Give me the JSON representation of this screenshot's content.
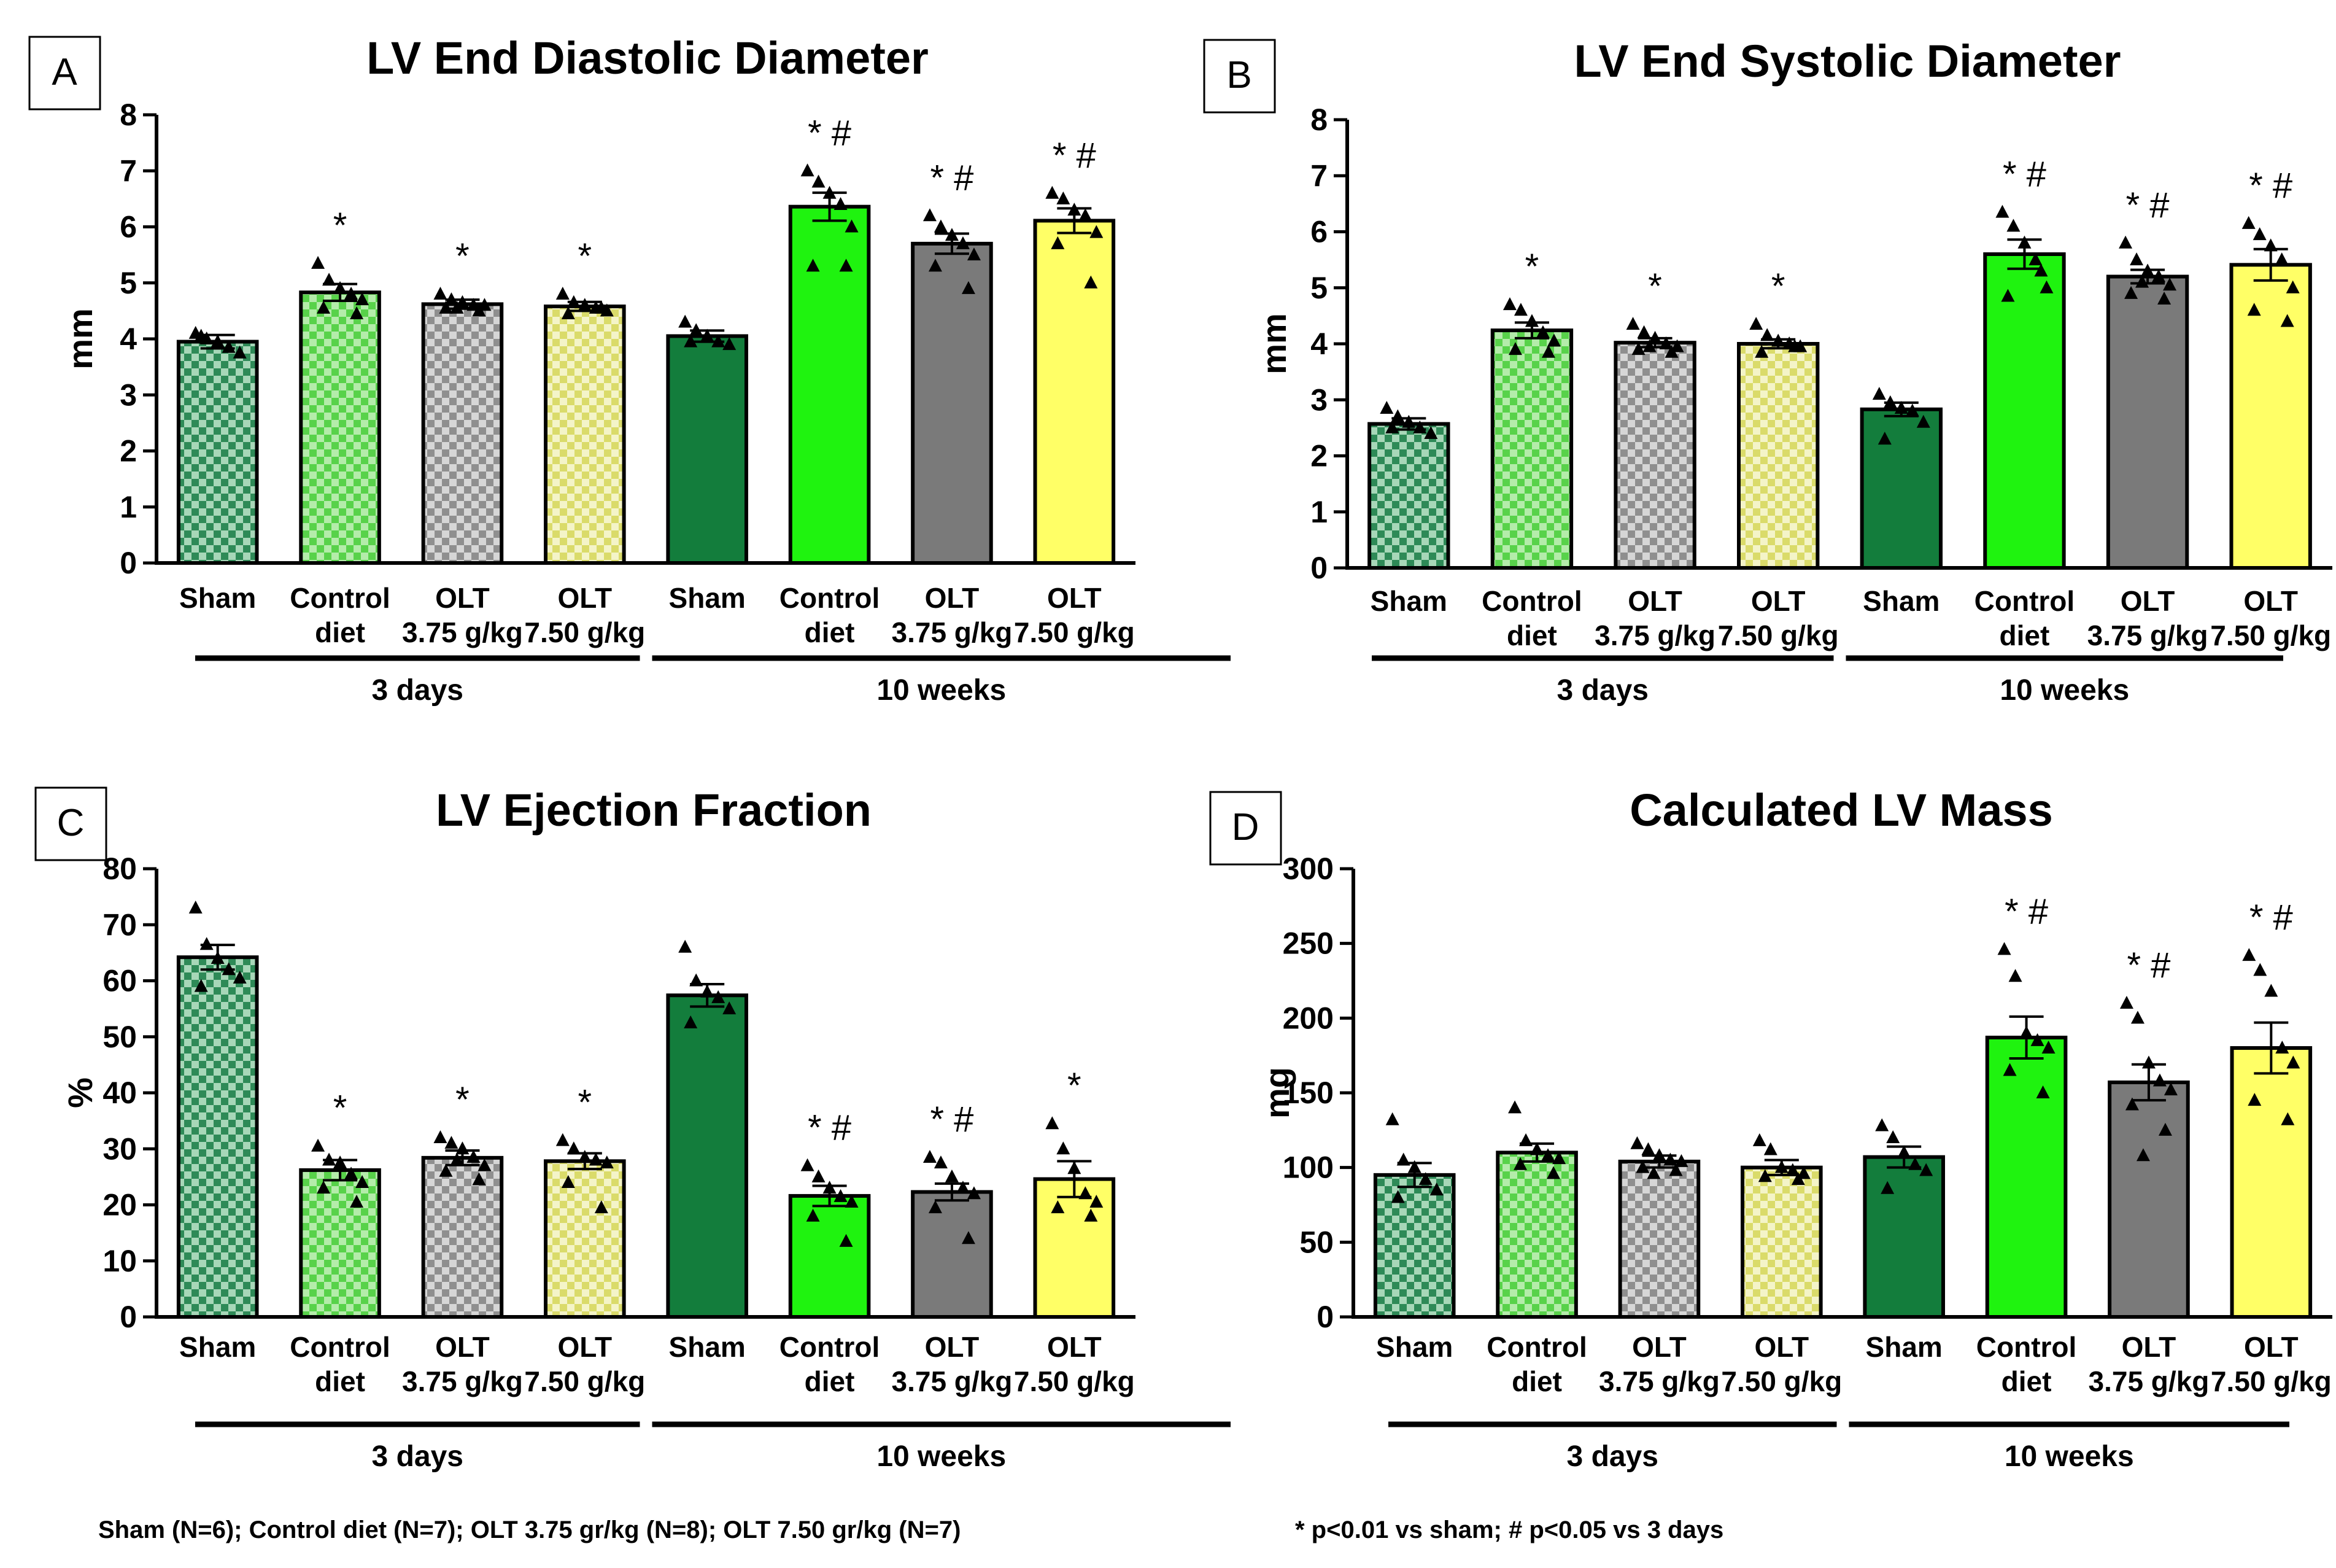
{
  "footnotes": {
    "sample_sizes": "Sham (N=6); Control diet (N=7); OLT 3.75 gr/kg (N=8); OLT 7.50 gr/kg (N=7)",
    "significance": "* p<0.01 vs sham; # p<0.05 vs 3 days"
  },
  "groups": [
    "3 days",
    "10 weeks"
  ],
  "category_lines": [
    [
      "Sham",
      ""
    ],
    [
      "Control",
      "diet"
    ],
    [
      "OLT",
      "3.75 g/kg"
    ],
    [
      "OLT",
      "7.50 g/kg"
    ],
    [
      "Sham",
      ""
    ],
    [
      "Control",
      "diet"
    ],
    [
      "OLT",
      "3.75 g/kg"
    ],
    [
      "OLT",
      "7.50 g/kg"
    ]
  ],
  "colors": {
    "sham_3d": "#1e7a45",
    "control_3d": "#6dd85c",
    "olt375_3d": "#9a9a9a",
    "olt750_3d": "#e3e68a",
    "sham_10w": "#137d3c",
    "control_10w": "#1ff30f",
    "olt375_10w": "#7a7a7a",
    "olt750_10w": "#ffff66"
  },
  "chart_data": [
    {
      "type": "bar",
      "panel": "A",
      "title": "LV End Diastolic Diameter",
      "ylabel": "mm",
      "ylim": [
        0,
        8
      ],
      "yticks": [
        0,
        1,
        2,
        3,
        4,
        5,
        6,
        7,
        8
      ],
      "categories": [
        "Sham",
        "Control diet",
        "OLT 3.75 g/kg",
        "OLT 7.50 g/kg",
        "Sham",
        "Control diet",
        "OLT 3.75 g/kg",
        "OLT 7.50 g/kg"
      ],
      "values": [
        3.95,
        4.83,
        4.62,
        4.58,
        4.05,
        6.36,
        5.7,
        6.11
      ],
      "sem": [
        0.12,
        0.15,
        0.08,
        0.08,
        0.1,
        0.25,
        0.18,
        0.22
      ],
      "points": [
        [
          4.1,
          4.0,
          3.95,
          3.85,
          3.75,
          4.05
        ],
        [
          5.35,
          5.05,
          4.9,
          4.8,
          4.7,
          4.55,
          4.45
        ],
        [
          4.8,
          4.7,
          4.65,
          4.6,
          4.6,
          4.55,
          4.5,
          4.55
        ],
        [
          4.8,
          4.65,
          4.6,
          4.55,
          4.5,
          4.45,
          4.55
        ],
        [
          4.3,
          4.15,
          4.05,
          3.95,
          3.9,
          3.95
        ],
        [
          7.0,
          6.8,
          6.6,
          6.4,
          6.0,
          5.3,
          5.3
        ],
        [
          6.2,
          6.0,
          5.85,
          5.7,
          5.5,
          5.3,
          4.9
        ],
        [
          6.6,
          6.5,
          6.3,
          6.2,
          5.9,
          5.7,
          5.0
        ]
      ],
      "annotations": [
        "",
        "*",
        "*",
        "*",
        "",
        "* #",
        "* #",
        "* #"
      ]
    },
    {
      "type": "bar",
      "panel": "B",
      "title": "LV End Systolic Diameter",
      "ylabel": "mm",
      "ylim": [
        0,
        8
      ],
      "yticks": [
        0,
        1,
        2,
        3,
        4,
        5,
        6,
        7,
        8
      ],
      "categories": [
        "Sham",
        "Control diet",
        "OLT 3.75 g/kg",
        "OLT 7.50 g/kg",
        "Sham",
        "Control diet",
        "OLT 3.75 g/kg",
        "OLT 7.50 g/kg"
      ],
      "values": [
        2.57,
        4.24,
        4.02,
        4.0,
        2.83,
        5.6,
        5.2,
        5.41
      ],
      "sem": [
        0.1,
        0.14,
        0.08,
        0.08,
        0.12,
        0.26,
        0.12,
        0.28
      ],
      "points": [
        [
          2.85,
          2.7,
          2.6,
          2.5,
          2.4,
          2.5
        ],
        [
          4.7,
          4.6,
          4.4,
          4.2,
          4.05,
          3.9,
          3.85
        ],
        [
          4.35,
          4.2,
          4.1,
          4.0,
          3.95,
          3.9,
          3.85,
          3.95
        ],
        [
          4.35,
          4.15,
          4.05,
          4.0,
          3.95,
          3.85,
          3.95
        ],
        [
          3.1,
          2.95,
          2.85,
          2.8,
          2.6,
          2.3
        ],
        [
          6.35,
          6.1,
          5.8,
          5.5,
          5.0,
          4.85,
          5.3
        ],
        [
          5.8,
          5.5,
          5.3,
          5.2,
          5.05,
          4.9,
          4.8,
          5.1
        ],
        [
          6.15,
          5.95,
          5.75,
          5.5,
          5.0,
          4.6,
          4.4
        ]
      ],
      "annotations": [
        "",
        "*",
        "*",
        "*",
        "",
        "* #",
        "* #",
        "* #"
      ]
    },
    {
      "type": "bar",
      "panel": "C",
      "title": "LV Ejection Fraction",
      "ylabel": "%",
      "ylim": [
        0,
        80
      ],
      "yticks": [
        0,
        10,
        20,
        30,
        40,
        50,
        60,
        70,
        80
      ],
      "categories": [
        "Sham",
        "Control diet",
        "OLT 3.75 g/kg",
        "OLT 7.50 g/kg",
        "Sham",
        "Control diet",
        "OLT 3.75 g/kg",
        "OLT 7.50 g/kg"
      ],
      "values": [
        64.2,
        26.2,
        28.4,
        27.8,
        57.4,
        21.6,
        22.3,
        24.6
      ],
      "sem": [
        2.2,
        1.8,
        1.3,
        1.4,
        2.0,
        1.8,
        1.5,
        3.2
      ],
      "points": [
        [
          73.0,
          66.5,
          64.0,
          62.0,
          60.5,
          59.0
        ],
        [
          30.5,
          28.0,
          27.5,
          25.5,
          24.0,
          23.0,
          20.5
        ],
        [
          32.0,
          31.0,
          30.0,
          28.5,
          27.0,
          26.0,
          24.5,
          28.0
        ],
        [
          31.5,
          30.0,
          28.5,
          28.0,
          27.5,
          24.0,
          19.5
        ],
        [
          66.0,
          60.0,
          58.0,
          57.0,
          55.0,
          52.5
        ],
        [
          27.0,
          25.0,
          23.0,
          21.5,
          20.5,
          18.0,
          13.5
        ],
        [
          28.5,
          27.5,
          25.0,
          23.0,
          22.0,
          19.5,
          14.0
        ],
        [
          34.5,
          30.0,
          26.5,
          22.0,
          20.5,
          19.5,
          18.0
        ]
      ],
      "annotations": [
        "",
        "*",
        "*",
        "*",
        "",
        "* #",
        "* #",
        "*"
      ]
    },
    {
      "type": "bar",
      "panel": "D",
      "title": "Calculated LV Mass",
      "ylabel": "mg",
      "ylim": [
        0,
        300
      ],
      "yticks": [
        0,
        50,
        100,
        150,
        200,
        250,
        300
      ],
      "categories": [
        "Sham",
        "Control diet",
        "OLT 3.75 g/kg",
        "OLT 7.50 g/kg",
        "Sham",
        "Control diet",
        "OLT 3.75 g/kg",
        "OLT 7.50 g/kg"
      ],
      "values": [
        95,
        110,
        104,
        100,
        107,
        187,
        157,
        180
      ],
      "sem": [
        8,
        6,
        4,
        5,
        7,
        14,
        12,
        17
      ],
      "points": [
        [
          132,
          105,
          100,
          92,
          85,
          80
        ],
        [
          140,
          118,
          112,
          108,
          106,
          102,
          96
        ],
        [
          116,
          112,
          108,
          105,
          104,
          100,
          98,
          96
        ],
        [
          118,
          112,
          100,
          98,
          96,
          94,
          92
        ],
        [
          128,
          120,
          110,
          102,
          98,
          86
        ],
        [
          246,
          228,
          190,
          185,
          180,
          165,
          150
        ],
        [
          210,
          200,
          170,
          158,
          152,
          142,
          125,
          108
        ],
        [
          242,
          232,
          218,
          180,
          170,
          145,
          132
        ]
      ],
      "annotations": [
        "",
        "",
        "",
        "",
        "",
        "* #",
        "* #",
        "* #"
      ]
    }
  ],
  "panel_labels": [
    "A",
    "B",
    "C",
    "D"
  ]
}
